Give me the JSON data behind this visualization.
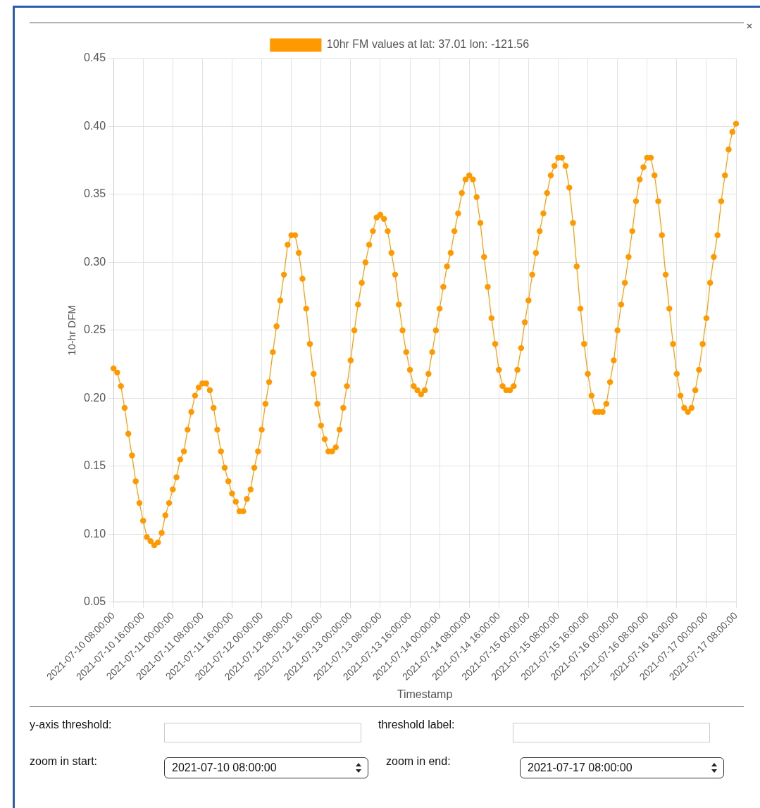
{
  "chart_data": {
    "type": "line",
    "xlabel": "Timestamp",
    "ylabel": "10-hr DFM",
    "categories": [
      "2021-07-10 08:00:00",
      null,
      null,
      null,
      null,
      null,
      null,
      null,
      "2021-07-10 16:00:00",
      null,
      null,
      null,
      null,
      null,
      null,
      null,
      "2021-07-11 00:00:00",
      null,
      null,
      null,
      null,
      null,
      null,
      null,
      "2021-07-11 08:00:00",
      null,
      null,
      null,
      null,
      null,
      null,
      null,
      "2021-07-11 16:00:00",
      null,
      null,
      null,
      null,
      null,
      null,
      null,
      "2021-07-12 00:00:00",
      null,
      null,
      null,
      null,
      null,
      null,
      null,
      "2021-07-12 08:00:00",
      null,
      null,
      null,
      null,
      null,
      null,
      null,
      "2021-07-12 16:00:00",
      null,
      null,
      null,
      null,
      null,
      null,
      null,
      "2021-07-13 00:00:00",
      null,
      null,
      null,
      null,
      null,
      null,
      null,
      "2021-07-13 08:00:00",
      null,
      null,
      null,
      null,
      null,
      null,
      null,
      "2021-07-13 16:00:00",
      null,
      null,
      null,
      null,
      null,
      null,
      null,
      "2021-07-14 00:00:00",
      null,
      null,
      null,
      null,
      null,
      null,
      null,
      "2021-07-14 08:00:00",
      null,
      null,
      null,
      null,
      null,
      null,
      null,
      "2021-07-14 16:00:00",
      null,
      null,
      null,
      null,
      null,
      null,
      null,
      "2021-07-15 00:00:00",
      null,
      null,
      null,
      null,
      null,
      null,
      null,
      "2021-07-15 08:00:00",
      null,
      null,
      null,
      null,
      null,
      null,
      null,
      "2021-07-15 16:00:00",
      null,
      null,
      null,
      null,
      null,
      null,
      null,
      "2021-07-16 00:00:00",
      null,
      null,
      null,
      null,
      null,
      null,
      null,
      "2021-07-16 08:00:00",
      null,
      null,
      null,
      null,
      null,
      null,
      null,
      "2021-07-16 16:00:00",
      null,
      null,
      null,
      null,
      null,
      null,
      null,
      "2021-07-17 00:00:00",
      null,
      null,
      null,
      null,
      null,
      null,
      null,
      "2021-07-17 08:00:00"
    ],
    "series": [
      {
        "name": "10hr FM values at lat: 37.01 lon: -121.56",
        "color": "#ff9900",
        "values": [
          0.222,
          0.219,
          0.209,
          0.193,
          0.174,
          0.158,
          0.139,
          0.123,
          0.11,
          0.098,
          0.095,
          0.092,
          0.094,
          0.101,
          0.114,
          0.123,
          0.133,
          0.142,
          0.155,
          0.161,
          0.177,
          0.19,
          0.202,
          0.208,
          0.211,
          0.211,
          0.206,
          0.193,
          0.177,
          0.161,
          0.149,
          0.139,
          0.13,
          0.124,
          0.117,
          0.117,
          0.126,
          0.133,
          0.149,
          0.161,
          0.177,
          0.196,
          0.212,
          0.234,
          0.253,
          0.272,
          0.291,
          0.313,
          0.32,
          0.32,
          0.307,
          0.288,
          0.266,
          0.24,
          0.218,
          0.196,
          0.18,
          0.17,
          0.161,
          0.161,
          0.164,
          0.177,
          0.193,
          0.209,
          0.228,
          0.25,
          0.269,
          0.285,
          0.3,
          0.313,
          0.323,
          0.333,
          0.335,
          0.332,
          0.323,
          0.307,
          0.291,
          0.269,
          0.25,
          0.234,
          0.221,
          0.209,
          0.206,
          0.203,
          0.206,
          0.218,
          0.234,
          0.25,
          0.266,
          0.282,
          0.297,
          0.307,
          0.323,
          0.336,
          0.351,
          0.361,
          0.364,
          0.361,
          0.348,
          0.329,
          0.304,
          0.282,
          0.259,
          0.24,
          0.221,
          0.209,
          0.206,
          0.206,
          0.209,
          0.221,
          0.237,
          0.256,
          0.272,
          0.291,
          0.307,
          0.323,
          0.336,
          0.351,
          0.364,
          0.371,
          0.377,
          0.377,
          0.371,
          0.355,
          0.329,
          0.297,
          0.266,
          0.24,
          0.218,
          0.202,
          0.19,
          0.19,
          0.19,
          0.196,
          0.212,
          0.228,
          0.25,
          0.269,
          0.285,
          0.304,
          0.323,
          0.345,
          0.361,
          0.37,
          0.377,
          0.377,
          0.364,
          0.345,
          0.32,
          0.291,
          0.266,
          0.24,
          0.218,
          0.202,
          0.193,
          0.19,
          0.193,
          0.206,
          0.221,
          0.24,
          0.259,
          0.285,
          0.304,
          0.32,
          0.345,
          0.364,
          0.383,
          0.396,
          0.402
        ]
      }
    ],
    "ylim": [
      0.05,
      0.45
    ],
    "yticks": [
      0.05,
      {
        "value": 0.1,
        "label": "0.10"
      },
      0.15,
      {
        "value": 0.2,
        "label": "0.20"
      },
      0.25,
      {
        "value": 0.3,
        "label": "0.30"
      },
      0.35,
      {
        "value": 0.4,
        "label": "0.40"
      },
      0.45
    ],
    "grid": true,
    "legend": "top",
    "marker": "circle",
    "line_style": "solid",
    "annotations": [
      "y-axis threshold:",
      "threshold label:",
      "zoom in start:",
      "zoom in end:"
    ]
  }
}
